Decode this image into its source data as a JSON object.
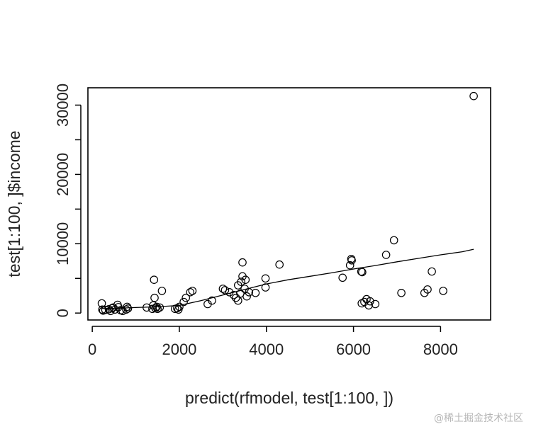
{
  "chart_data": {
    "type": "scatter",
    "title": "",
    "xlabel": "predict(rfmodel, test[1:100, ])",
    "ylabel": "test[1:100, ]$income",
    "xlim": [
      -100,
      9150
    ],
    "ylim": [
      -1000,
      32500
    ],
    "x_ticks": [
      0,
      2000,
      4000,
      6000,
      8000
    ],
    "y_ticks": [
      0,
      5000,
      10000,
      15000,
      20000,
      25000,
      30000
    ],
    "y_tick_labels": [
      "0",
      "10000",
      "20000",
      "30000"
    ],
    "y_tick_label_values": [
      0,
      10000,
      20000,
      30000
    ],
    "grid": false,
    "legend": "none",
    "marker": "open-circle",
    "point_color": "#000000",
    "points": [
      [
        220,
        1400
      ],
      [
        230,
        500
      ],
      [
        250,
        350
      ],
      [
        300,
        450
      ],
      [
        380,
        550
      ],
      [
        420,
        300
      ],
      [
        450,
        700
      ],
      [
        480,
        800
      ],
      [
        520,
        500
      ],
      [
        580,
        1200
      ],
      [
        600,
        850
      ],
      [
        650,
        400
      ],
      [
        700,
        300
      ],
      [
        780,
        500
      ],
      [
        800,
        900
      ],
      [
        820,
        650
      ],
      [
        1250,
        800
      ],
      [
        1380,
        600
      ],
      [
        1400,
        1100
      ],
      [
        1420,
        4800
      ],
      [
        1430,
        2200
      ],
      [
        1450,
        700
      ],
      [
        1480,
        900
      ],
      [
        1500,
        600
      ],
      [
        1550,
        800
      ],
      [
        1600,
        3200
      ],
      [
        1900,
        600
      ],
      [
        1950,
        700
      ],
      [
        1980,
        500
      ],
      [
        2000,
        900
      ],
      [
        2100,
        1600
      ],
      [
        2150,
        2200
      ],
      [
        2250,
        3000
      ],
      [
        2300,
        3200
      ],
      [
        2650,
        1300
      ],
      [
        2750,
        1800
      ],
      [
        3000,
        3500
      ],
      [
        3050,
        3300
      ],
      [
        3150,
        3000
      ],
      [
        3250,
        2600
      ],
      [
        3300,
        2200
      ],
      [
        3350,
        1800
      ],
      [
        3350,
        4000
      ],
      [
        3400,
        2800
      ],
      [
        3420,
        4500
      ],
      [
        3450,
        7300
      ],
      [
        3450,
        5300
      ],
      [
        3500,
        3500
      ],
      [
        3520,
        4800
      ],
      [
        3550,
        2400
      ],
      [
        3600,
        3000
      ],
      [
        3750,
        2900
      ],
      [
        3980,
        3700
      ],
      [
        3980,
        5000
      ],
      [
        4300,
        7000
      ],
      [
        5750,
        5100
      ],
      [
        5920,
        6900
      ],
      [
        5950,
        7800
      ],
      [
        5960,
        7600
      ],
      [
        6180,
        6000
      ],
      [
        6190,
        1400
      ],
      [
        6200,
        5900
      ],
      [
        6250,
        1600
      ],
      [
        6300,
        2000
      ],
      [
        6350,
        1100
      ],
      [
        6380,
        1700
      ],
      [
        6500,
        1300
      ],
      [
        6750,
        8400
      ],
      [
        6930,
        10500
      ],
      [
        7100,
        2900
      ],
      [
        7630,
        2900
      ],
      [
        7700,
        3400
      ],
      [
        7800,
        6000
      ],
      [
        8060,
        3200
      ],
      [
        8760,
        31300
      ]
    ],
    "smooth_line": {
      "name": "",
      "x": [
        200,
        600,
        1000,
        1500,
        2000,
        2500,
        3000,
        3500,
        4000,
        4500,
        5000,
        5500,
        6000,
        6500,
        7000,
        7500,
        8000,
        8500,
        8760
      ],
      "y": [
        650,
        700,
        800,
        900,
        1100,
        1800,
        2600,
        3400,
        4200,
        4800,
        5300,
        5800,
        6350,
        6850,
        7400,
        7900,
        8400,
        8850,
        9200
      ]
    }
  },
  "watermark": "@稀土掘金技术社区"
}
